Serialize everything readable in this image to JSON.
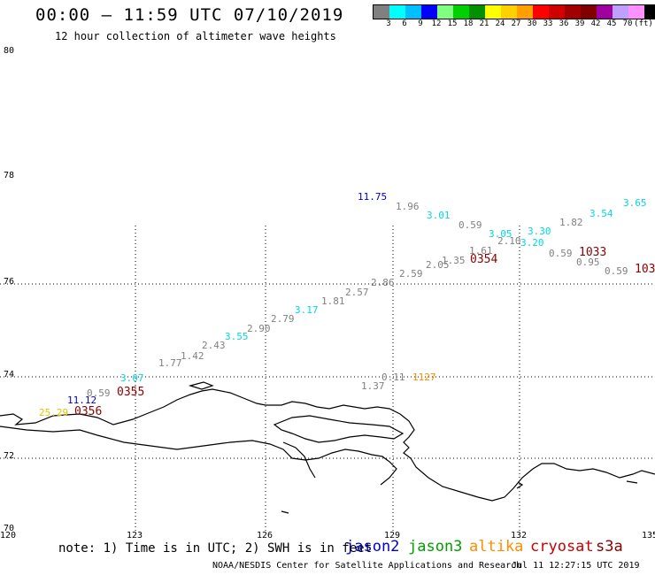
{
  "header": {
    "title": "00:00 – 11:59 UTC 07/10/2019",
    "subtitle": "12 hour collection of altimeter wave heights"
  },
  "legend": {
    "colors": [
      "#808080",
      "#00ffff",
      "#00bfff",
      "#0000ff",
      "#80ff80",
      "#00d000",
      "#009000",
      "#ffff00",
      "#ffd000",
      "#ffa000",
      "#ff0000",
      "#d00000",
      "#a00000",
      "#800000",
      "#a000a0",
      "#c0a0ff",
      "#ff90ff",
      "#000000"
    ],
    "labels": [
      "3",
      "6",
      "9",
      "12",
      "15",
      "18",
      "21",
      "24",
      "27",
      "30",
      "33",
      "36",
      "39",
      "42",
      "45",
      "70",
      "(ft)"
    ]
  },
  "map": {
    "lat_labels": [
      "80",
      "78",
      "76",
      "74",
      "72",
      "70"
    ],
    "lon_labels": [
      "120",
      "123",
      "126",
      "129",
      "132",
      "135"
    ],
    "wave_heights": [
      {
        "text": "25.29",
        "color": "#e8c000"
      },
      {
        "text": "11.12",
        "color": "#0000cc"
      },
      {
        "text": "0.59",
        "color": "#808080"
      },
      {
        "text": "3.07",
        "color": "#00d8e8"
      },
      {
        "text": "1.77",
        "color": "#808080"
      },
      {
        "text": "1.42",
        "color": "#808080"
      },
      {
        "text": "2.43",
        "color": "#808080"
      },
      {
        "text": "3.55",
        "color": "#00d8e8"
      },
      {
        "text": "2.90",
        "color": "#808080"
      },
      {
        "text": "2.79",
        "color": "#808080"
      },
      {
        "text": "3.17",
        "color": "#00d8e8"
      },
      {
        "text": "1.81",
        "color": "#808080"
      },
      {
        "text": "2.57",
        "color": "#808080"
      },
      {
        "text": "2.86",
        "color": "#808080"
      },
      {
        "text": "2.59",
        "color": "#808080"
      },
      {
        "text": "2.05",
        "color": "#808080"
      },
      {
        "text": "1.35",
        "color": "#808080"
      },
      {
        "text": "1.61",
        "color": "#808080"
      },
      {
        "text": "2.10",
        "color": "#808080"
      },
      {
        "text": "3.05",
        "color": "#00d8e8"
      },
      {
        "text": "3.20",
        "color": "#00d8e8"
      },
      {
        "text": "3.30",
        "color": "#00d8e8"
      },
      {
        "text": "0.59",
        "color": "#808080"
      },
      {
        "text": "0.95",
        "color": "#808080"
      },
      {
        "text": "0.59",
        "color": "#808080"
      },
      {
        "text": "1.82",
        "color": "#808080"
      },
      {
        "text": "3.54",
        "color": "#00d8e8"
      },
      {
        "text": "3.65",
        "color": "#00d8e8"
      },
      {
        "text": "0.59",
        "color": "#808080"
      },
      {
        "text": "3.01",
        "color": "#00d8e8"
      },
      {
        "text": "1.96",
        "color": "#808080"
      },
      {
        "text": "11.75",
        "color": "#0000cc"
      },
      {
        "text": "0.11",
        "color": "#808080"
      },
      {
        "text": "1.37",
        "color": "#808080"
      },
      {
        "text": "1127",
        "color": "#ff8c00"
      }
    ],
    "pass_times": [
      {
        "text": "0356",
        "color": "#8b0000"
      },
      {
        "text": "0355",
        "color": "#8b0000"
      },
      {
        "text": "0354",
        "color": "#8b0000"
      },
      {
        "text": "1033",
        "color": "#8b0000"
      },
      {
        "text": "103",
        "color": "#8b0000"
      }
    ]
  },
  "footer": {
    "note": "note: 1) Time is in UTC; 2) SWH is in feet",
    "satellites": [
      {
        "name": "jason2",
        "color": "#0000cc"
      },
      {
        "name": "jason3",
        "color": "#00a000"
      },
      {
        "name": "altika",
        "color": "#ff8c00"
      },
      {
        "name": "cryosat",
        "color": "#cc0000"
      },
      {
        "name": "s3a",
        "color": "#8b0000"
      }
    ],
    "credit": "NOAA/NESDIS Center for Satellite Applications and Research",
    "timestamp": "Jul 11 12:27:15 UTC 2019"
  }
}
